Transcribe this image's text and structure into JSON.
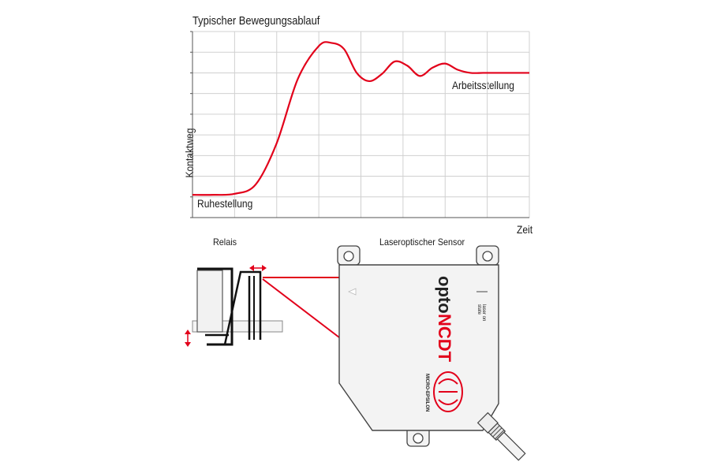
{
  "chart_data": {
    "type": "line",
    "title": "Typischer Bewegungsablauf",
    "xlabel": "Zeit",
    "ylabel": "Kontaktweg",
    "grid": true,
    "x_gridlines": 8,
    "y_gridlines": 9,
    "series": [
      {
        "color": "#e2001a",
        "x": [
          0.0,
          0.5,
          1.0,
          1.5,
          2.0,
          2.5,
          3.0,
          3.3,
          3.6,
          3.9,
          4.2,
          4.5,
          4.8,
          5.1,
          5.4,
          5.7,
          6.0,
          6.3,
          6.6,
          6.9,
          7.2,
          7.5,
          8.0
        ],
        "y": [
          1.1,
          1.1,
          1.15,
          1.6,
          3.6,
          6.7,
          8.3,
          8.45,
          8.15,
          7.0,
          6.6,
          6.95,
          7.55,
          7.35,
          6.85,
          7.25,
          7.45,
          7.15,
          7.0,
          7.0,
          7.0,
          7.0,
          7.0
        ]
      }
    ],
    "annotations": [
      {
        "text": "Ruhestellung"
      },
      {
        "text": "Arbeitsstellung"
      }
    ]
  },
  "diagram": {
    "relais_label": "Relais",
    "sensor_label": "Laseroptischer Sensor",
    "brand_text_opto": "opto",
    "brand_text_ncdt": "NCDT",
    "company_text": "MICRO-EPSILON",
    "status_text_1": "laser on",
    "status_text_2": "state",
    "accent_color": "#e2001a"
  }
}
